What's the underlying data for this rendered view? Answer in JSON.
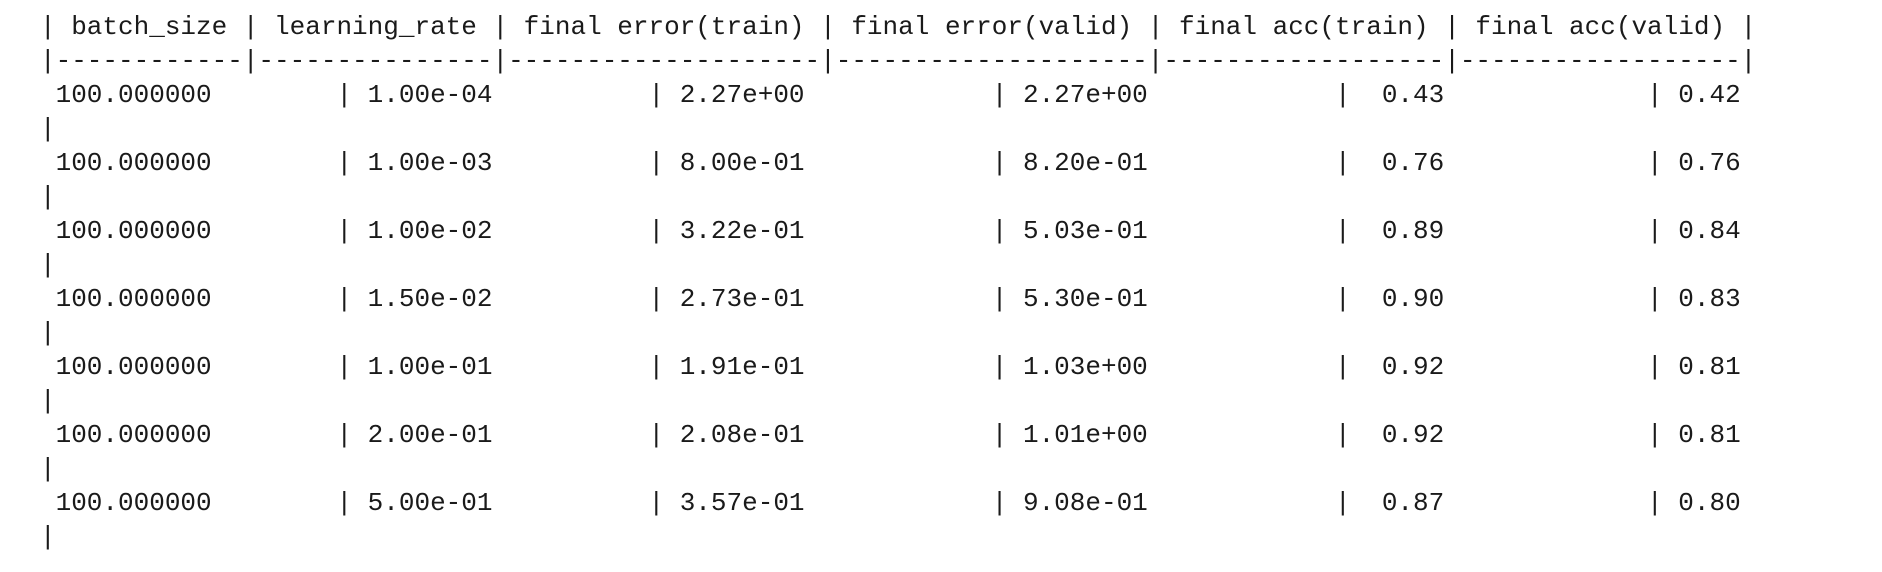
{
  "table": {
    "columns": [
      "batch_size",
      "learning_rate",
      "final error(train)",
      "final error(valid)",
      "final acc(train)",
      "final acc(valid)"
    ],
    "header_line": "| batch_size | learning_rate | final error(train) | final error(valid) | final acc(train) | final acc(valid) |",
    "separator_line": "|------------|---------------|--------------------|--------------------|------------------|------------------|",
    "rows": [
      {
        "batch_size": "100.000000",
        "learning_rate": "1.00e-04",
        "error_train": "2.27e+00",
        "error_valid": "2.27e+00",
        "acc_train": "0.43",
        "acc_valid": "0.42",
        "line": " 100.000000        | 1.00e-04          | 2.27e+00            | 2.27e+00            |  0.43             | 0.42"
      },
      {
        "batch_size": "100.000000",
        "learning_rate": "1.00e-03",
        "error_train": "8.00e-01",
        "error_valid": "8.20e-01",
        "acc_train": "0.76",
        "acc_valid": "0.76",
        "line": " 100.000000        | 1.00e-03          | 8.00e-01            | 8.20e-01            |  0.76             | 0.76"
      },
      {
        "batch_size": "100.000000",
        "learning_rate": "1.00e-02",
        "error_train": "3.22e-01",
        "error_valid": "5.03e-01",
        "acc_train": "0.89",
        "acc_valid": "0.84",
        "line": " 100.000000        | 1.00e-02          | 3.22e-01            | 5.03e-01            |  0.89             | 0.84"
      },
      {
        "batch_size": "100.000000",
        "learning_rate": "1.50e-02",
        "error_train": "2.73e-01",
        "error_valid": "5.30e-01",
        "acc_train": "0.90",
        "acc_valid": "0.83",
        "line": " 100.000000        | 1.50e-02          | 2.73e-01            | 5.30e-01            |  0.90             | 0.83"
      },
      {
        "batch_size": "100.000000",
        "learning_rate": "1.00e-01",
        "error_train": "1.91e-01",
        "error_valid": "1.03e+00",
        "acc_train": "0.92",
        "acc_valid": "0.81",
        "line": " 100.000000        | 1.00e-01          | 1.91e-01            | 1.03e+00            |  0.92             | 0.81"
      },
      {
        "batch_size": "100.000000",
        "learning_rate": "2.00e-01",
        "error_train": "2.08e-01",
        "error_valid": "1.01e+00",
        "acc_train": "0.92",
        "acc_valid": "0.81",
        "line": " 100.000000        | 2.00e-01          | 2.08e-01            | 1.01e+00            |  0.92             | 0.81"
      },
      {
        "batch_size": "100.000000",
        "learning_rate": "5.00e-01",
        "error_train": "3.57e-01",
        "error_valid": "9.08e-01",
        "acc_train": "0.87",
        "acc_valid": "0.80",
        "line": " 100.000000        | 5.00e-01          | 3.57e-01            | 9.08e-01            |  0.87             | 0.80"
      }
    ],
    "row_terminator": "|"
  }
}
